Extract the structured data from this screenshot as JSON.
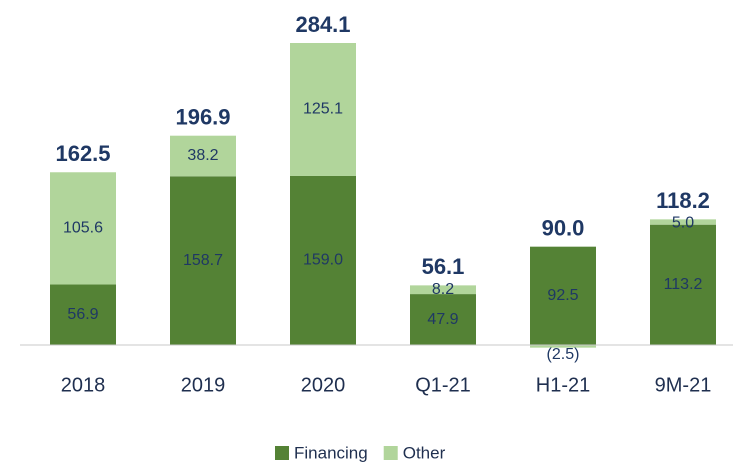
{
  "chart_data": {
    "type": "stacked_bar",
    "categories": [
      "2018",
      "2019",
      "2020",
      "Q1-21",
      "H1-21",
      "9M-21"
    ],
    "series": [
      {
        "name": "Financing",
        "color": "#548235",
        "values": [
          56.9,
          158.7,
          159.0,
          47.9,
          92.5,
          113.2
        ],
        "value_labels": [
          "56.9",
          "158.7",
          "159.0",
          "47.9",
          "92.5",
          "113.2"
        ]
      },
      {
        "name": "Other",
        "color": "#b1d59b",
        "values": [
          105.6,
          38.2,
          125.1,
          8.2,
          -2.5,
          5.0
        ],
        "value_labels": [
          "105.6",
          "38.2",
          "125.1",
          "8.2",
          "(2.5)",
          "5.0"
        ]
      }
    ],
    "totals": [
      162.5,
      196.9,
      284.1,
      56.1,
      90.0,
      118.2
    ],
    "total_labels": [
      "162.5",
      "196.9",
      "284.1",
      "56.1",
      "90.0",
      "118.2"
    ]
  }
}
